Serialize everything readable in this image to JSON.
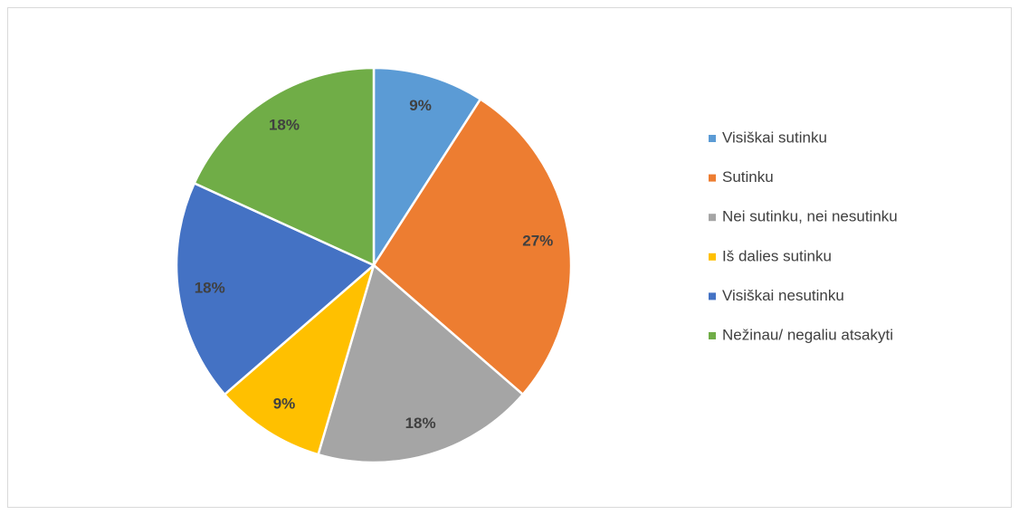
{
  "chart_data": {
    "type": "pie",
    "categories": [
      "Visiškai sutinku",
      "Sutinku",
      "Nei sutinku, nei nesutinku",
      "Iš dalies sutinku",
      "Visiškai nesutinku",
      "Nežinau/ negaliu atsakyti"
    ],
    "values": [
      9,
      27,
      18,
      9,
      18,
      18
    ],
    "value_labels": [
      "9%",
      "27%",
      "18%",
      "9%",
      "18%",
      "18%"
    ],
    "colors": [
      "#5b9bd5",
      "#ed7d31",
      "#a5a5a5",
      "#ffc000",
      "#4472c4",
      "#70ad47"
    ],
    "legend": "right"
  }
}
